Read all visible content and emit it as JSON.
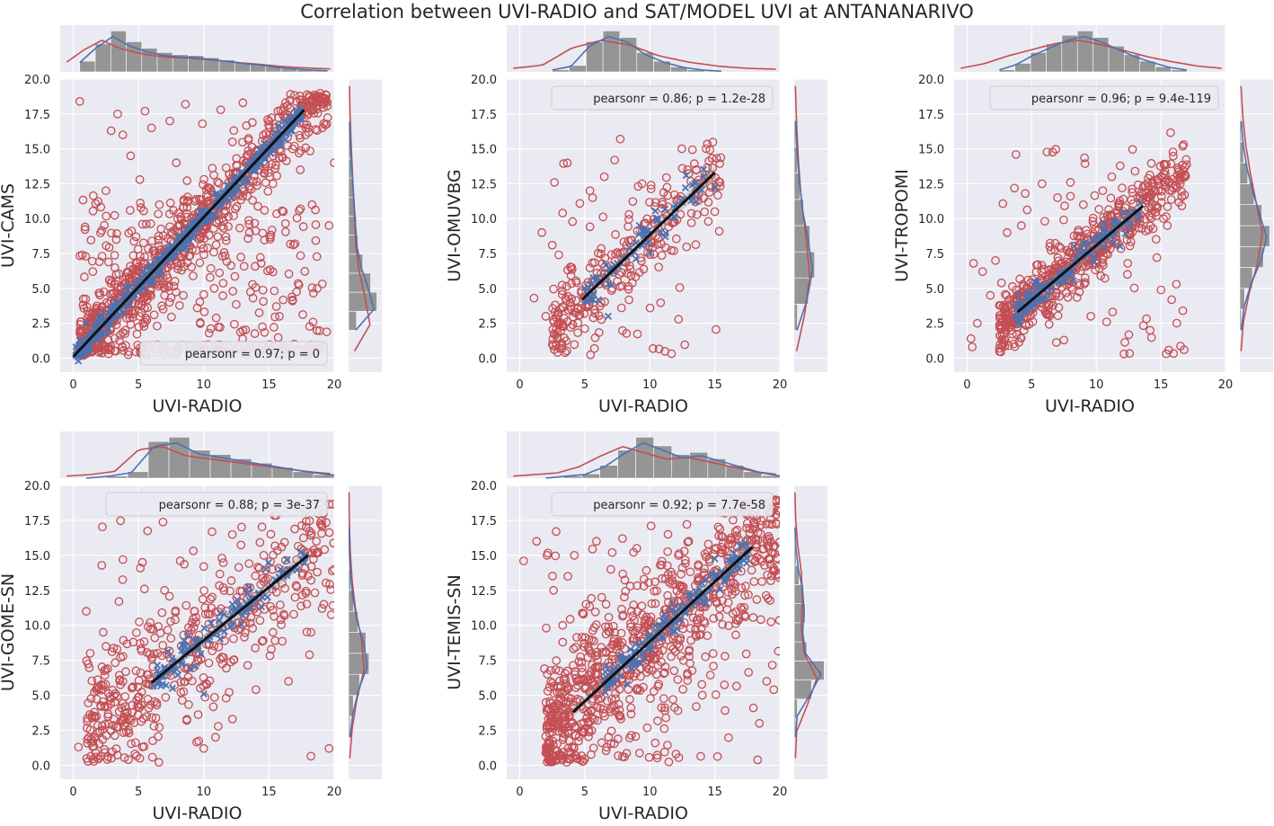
{
  "title": "Correlation between UVI-RADIO and SAT/MODEL UVI at ANTANANARIVO",
  "colors": {
    "background": "#eaeaf2",
    "grid": "#ffffff",
    "red": "#c44e52",
    "blue": "#4c72b0",
    "hist": "#8c8c8c",
    "fit": "#111111"
  },
  "chart_data": [
    {
      "type": "scatter",
      "xlabel": "UVI-RADIO",
      "ylabel": "UVI-CAMS",
      "xlim": [
        -1,
        20
      ],
      "ylim": [
        -1,
        20
      ],
      "xticks": [
        "0",
        "5",
        "10",
        "15",
        "20"
      ],
      "yticks": [
        "0.0",
        "2.5",
        "5.0",
        "7.5",
        "10.0",
        "12.5",
        "15.0",
        "17.5",
        "20.0"
      ],
      "stat": "pearsonr = 0.97; p = 0",
      "legend": "bottom-right",
      "fit": {
        "x": [
          0,
          17.7
        ],
        "y": [
          0.1,
          17.8
        ]
      },
      "red_points": [
        [
          0.3,
          0.3
        ],
        [
          0.5,
          18.4
        ],
        [
          1.2,
          2.5
        ],
        [
          1.5,
          6.2
        ],
        [
          2.1,
          3.4
        ],
        [
          2.5,
          12.0
        ],
        [
          2.9,
          16.3
        ],
        [
          3.0,
          4.6
        ],
        [
          3.3,
          8.5
        ],
        [
          3.4,
          17.5
        ],
        [
          3.8,
          16.0
        ],
        [
          4.0,
          2.0
        ],
        [
          4.4,
          14.5
        ],
        [
          4.9,
          6.8
        ],
        [
          5.1,
          12.8
        ],
        [
          5.3,
          9.6
        ],
        [
          5.5,
          17.7
        ],
        [
          6.0,
          16.5
        ],
        [
          6.2,
          3.1
        ],
        [
          6.6,
          11.0
        ],
        [
          7.0,
          4.5
        ],
        [
          7.4,
          17.0
        ],
        [
          7.9,
          14.0
        ],
        [
          8.3,
          6.3
        ],
        [
          8.6,
          18.2
        ],
        [
          9.1,
          10.0
        ],
        [
          9.5,
          3.6
        ],
        [
          9.9,
          16.8
        ],
        [
          10.4,
          12.2
        ],
        [
          10.8,
          5.0
        ],
        [
          11.3,
          17.8
        ],
        [
          11.7,
          8.7
        ],
        [
          12.2,
          15.5
        ],
        [
          12.6,
          11.8
        ],
        [
          13.0,
          18.3
        ],
        [
          13.5,
          9.0
        ],
        [
          14.0,
          14.8
        ],
        [
          14.4,
          6.8
        ],
        [
          14.9,
          17.1
        ],
        [
          15.3,
          12.5
        ],
        [
          15.8,
          3.0
        ],
        [
          16.1,
          10.5
        ],
        [
          16.6,
          17.9
        ],
        [
          17.0,
          8.2
        ],
        [
          17.4,
          13.5
        ],
        [
          17.8,
          16.0
        ],
        [
          18.3,
          11.0
        ],
        [
          18.7,
          5.0
        ],
        [
          19.1,
          16.5
        ],
        [
          19.6,
          9.5
        ],
        [
          20.0,
          14.0
        ]
      ],
      "blue_points": [
        [
          0.2,
          0.2
        ],
        [
          1.0,
          1.0
        ],
        [
          2.0,
          1.9
        ],
        [
          3.0,
          3.1
        ],
        [
          4.0,
          3.8
        ],
        [
          5.0,
          5.1
        ],
        [
          6.0,
          6.0
        ],
        [
          7.0,
          7.1
        ],
        [
          8.0,
          7.9
        ],
        [
          9.0,
          9.0
        ],
        [
          10.0,
          10.2
        ],
        [
          11.0,
          11.1
        ],
        [
          12.0,
          12.0
        ],
        [
          13.0,
          13.1
        ],
        [
          14.0,
          14.1
        ],
        [
          15.0,
          14.8
        ],
        [
          16.0,
          16.1
        ],
        [
          17.0,
          17.0
        ]
      ],
      "dense_red": {
        "n": 1100,
        "xmin": 0.5,
        "xmax": 19.5,
        "slope": 1.0,
        "spread": 1.3,
        "outliers": 0.28
      },
      "dense_blue": {
        "n": 450,
        "xmin": 0.2,
        "xmax": 17.5,
        "slope": 1.0,
        "spread": 0.35
      },
      "top_hist": [
        0.25,
        0.65,
        0.95,
        0.7,
        0.55,
        0.45,
        0.4,
        0.38,
        0.33,
        0.28,
        0.22,
        0.18,
        0.12,
        0.08,
        0.05,
        0.03
      ],
      "right_hist": [
        0.25,
        0.9,
        0.7,
        0.45,
        0.3,
        0.25,
        0.2,
        0.15,
        0.1,
        0.06,
        0.04
      ]
    },
    {
      "type": "scatter",
      "xlabel": "UVI-RADIO",
      "ylabel": "UVI-OMUVBG",
      "xlim": [
        -1,
        20
      ],
      "ylim": [
        -1,
        20
      ],
      "xticks": [
        "0",
        "5",
        "10",
        "15",
        "20"
      ],
      "yticks": [
        "0.0",
        "2.5",
        "5.0",
        "7.5",
        "10.0",
        "12.5",
        "15.0",
        "17.5",
        "20.0"
      ],
      "stat": "pearsonr = 0.86; p = 1.2e-28",
      "legend": "top-right",
      "fit": {
        "x": [
          4.8,
          15.0
        ],
        "y": [
          4.2,
          13.3
        ]
      },
      "red_points": [
        [
          1.1,
          4.3
        ],
        [
          1.7,
          9.0
        ],
        [
          2.0,
          3.0
        ],
        [
          2.5,
          8.1
        ],
        [
          3.0,
          7.4
        ],
        [
          3.3,
          10.4
        ],
        [
          4.0,
          6.5
        ],
        [
          5.4,
          12.0
        ],
        [
          5.6,
          11.5
        ],
        [
          6.5,
          13.0
        ],
        [
          7.3,
          14.2
        ],
        [
          8.4,
          10.3
        ],
        [
          9.4,
          12.5
        ],
        [
          10.1,
          12.4
        ],
        [
          11.0,
          10.0
        ],
        [
          12.5,
          13.6
        ],
        [
          13.5,
          11.2
        ],
        [
          14.5,
          9.8
        ],
        [
          15.0,
          10.5
        ],
        [
          15.4,
          12.6
        ]
      ],
      "blue_points": [
        [
          5.0,
          5.0
        ],
        [
          5.5,
          4.2
        ],
        [
          6.0,
          5.8
        ],
        [
          6.8,
          3.0
        ],
        [
          7.5,
          6.8
        ],
        [
          8.2,
          7.3
        ],
        [
          9.2,
          9.5
        ],
        [
          10.5,
          10.0
        ],
        [
          11.2,
          8.7
        ],
        [
          12.8,
          13.1
        ],
        [
          13.2,
          11.3
        ],
        [
          15.0,
          12.2
        ]
      ],
      "dense_red": {
        "n": 300,
        "xmin": 2.5,
        "xmax": 15.5,
        "slope": 0.9,
        "spread": 1.5,
        "outliers": 0.1
      },
      "dense_blue": {
        "n": 65,
        "xmin": 5.0,
        "xmax": 15.0,
        "slope": 0.9,
        "spread": 0.7
      },
      "top_hist": [
        0.05,
        0.15,
        0.7,
        0.95,
        0.8,
        0.45,
        0.25,
        0.12,
        0.05,
        0.02
      ],
      "right_hist": [
        0.1,
        0.45,
        0.65,
        0.5,
        0.3,
        0.18,
        0.1,
        0.05
      ]
    },
    {
      "type": "scatter",
      "xlabel": "UVI-RADIO",
      "ylabel": "UVI-TROPOMI",
      "xlim": [
        -1,
        20
      ],
      "ylim": [
        -1,
        20
      ],
      "xticks": [
        "0",
        "5",
        "10",
        "15",
        "20"
      ],
      "yticks": [
        "0.0",
        "2.5",
        "5.0",
        "7.5",
        "10.0",
        "12.5",
        "15.0",
        "17.5",
        "20.0"
      ],
      "stat": "pearsonr = 0.96; p = 9.4e-119",
      "legend": "top-right",
      "fit": {
        "x": [
          3.9,
          13.6
        ],
        "y": [
          3.3,
          10.9
        ]
      },
      "red_points": [
        [
          0.3,
          1.4
        ],
        [
          0.4,
          0.8
        ],
        [
          0.5,
          6.8
        ],
        [
          0.8,
          2.5
        ],
        [
          1.2,
          6.2
        ],
        [
          1.8,
          4.5
        ],
        [
          2.2,
          7.0
        ],
        [
          3.1,
          9.0
        ],
        [
          4.2,
          9.5
        ],
        [
          4.5,
          11.8
        ],
        [
          5.8,
          12.5
        ],
        [
          6.4,
          8.0
        ],
        [
          7.0,
          11.5
        ],
        [
          8.0,
          12.6
        ],
        [
          9.0,
          11.0
        ],
        [
          7.5,
          1.3
        ],
        [
          10.5,
          12.0
        ],
        [
          11.2,
          13.0
        ],
        [
          12.0,
          12.2
        ],
        [
          13.0,
          13.4
        ],
        [
          14.8,
          12.0
        ],
        [
          15.2,
          10.0
        ],
        [
          15.5,
          9.5
        ],
        [
          16.5,
          13.0
        ],
        [
          16.7,
          3.4
        ],
        [
          16.8,
          0.6
        ],
        [
          16.2,
          5.3
        ]
      ],
      "blue_points": [
        [
          3.8,
          3.0
        ],
        [
          4.5,
          3.4
        ],
        [
          5.0,
          4.0
        ],
        [
          5.5,
          4.6
        ],
        [
          6.3,
          5.1
        ],
        [
          7.0,
          5.6
        ],
        [
          7.7,
          6.1
        ],
        [
          8.5,
          7.0
        ],
        [
          9.3,
          7.5
        ],
        [
          10.2,
          8.3
        ],
        [
          11.0,
          9.0
        ],
        [
          12.0,
          9.7
        ],
        [
          13.0,
          10.4
        ]
      ],
      "dense_red": {
        "n": 650,
        "xmin": 2.5,
        "xmax": 17.0,
        "slope": 0.78,
        "spread": 1.1,
        "outliers": 0.07
      },
      "dense_blue": {
        "n": 130,
        "xmin": 3.8,
        "xmax": 13.5,
        "slope": 0.78,
        "spread": 0.5
      },
      "top_hist": [
        0.05,
        0.2,
        0.45,
        0.65,
        0.85,
        0.95,
        0.8,
        0.6,
        0.4,
        0.25,
        0.12,
        0.05
      ],
      "right_hist": [
        0.05,
        0.15,
        0.4,
        0.75,
        0.95,
        0.7,
        0.45,
        0.25,
        0.12,
        0.05
      ]
    },
    {
      "type": "scatter",
      "xlabel": "UVI-RADIO",
      "ylabel": "UVI-GOME-SN",
      "xlim": [
        -1,
        20
      ],
      "ylim": [
        -1,
        20
      ],
      "xticks": [
        "0",
        "5",
        "10",
        "15",
        "20"
      ],
      "yticks": [
        "0.0",
        "2.5",
        "5.0",
        "7.5",
        "10.0",
        "12.5",
        "15.0",
        "17.5",
        "20.0"
      ],
      "stat": "pearsonr = 0.88; p = 3e-37",
      "legend": "top-right",
      "fit": {
        "x": [
          6.0,
          18.0
        ],
        "y": [
          5.9,
          15.0
        ]
      },
      "red_points": [
        [
          0.4,
          1.3
        ],
        [
          1.0,
          11.0
        ],
        [
          1.3,
          8.0
        ],
        [
          1.8,
          5.5
        ],
        [
          2.3,
          9.5
        ],
        [
          2.8,
          4.9
        ],
        [
          3.1,
          3.3
        ],
        [
          3.5,
          11.7
        ],
        [
          4.0,
          4.2
        ],
        [
          4.6,
          8.8
        ],
        [
          5.1,
          0.5
        ],
        [
          5.3,
          14.5
        ],
        [
          5.9,
          10.2
        ],
        [
          6.4,
          4.3
        ],
        [
          7.0,
          12.5
        ],
        [
          7.6,
          7.0
        ],
        [
          8.2,
          14.6
        ],
        [
          8.7,
          3.2
        ],
        [
          9.3,
          11.0
        ],
        [
          10.0,
          14.2
        ],
        [
          10.0,
          1.2
        ],
        [
          10.9,
          2.0
        ],
        [
          11.4,
          14.8
        ],
        [
          12.2,
          3.3
        ],
        [
          12.7,
          10.2
        ],
        [
          13.4,
          12.5
        ],
        [
          14.0,
          5.4
        ],
        [
          14.6,
          15.0
        ],
        [
          15.3,
          9.5
        ],
        [
          16.0,
          13.0
        ],
        [
          16.5,
          6.0
        ],
        [
          17.0,
          12.0
        ],
        [
          18.0,
          15.2
        ],
        [
          18.7,
          13.8
        ],
        [
          19.2,
          11.5
        ],
        [
          19.6,
          1.2
        ],
        [
          20.0,
          14.0
        ]
      ],
      "blue_points": [
        [
          6.5,
          6.0
        ],
        [
          7.0,
          7.0
        ],
        [
          7.6,
          5.5
        ],
        [
          8.3,
          7.4
        ],
        [
          9.0,
          8.2
        ],
        [
          10.0,
          5.1
        ],
        [
          10.3,
          8.9
        ],
        [
          11.5,
          10.0
        ],
        [
          12.2,
          11.5
        ],
        [
          13.0,
          10.7
        ],
        [
          14.2,
          12.3
        ],
        [
          15.2,
          12.8
        ],
        [
          16.1,
          13.5
        ],
        [
          17.0,
          14.1
        ],
        [
          17.8,
          15.0
        ]
      ],
      "dense_red": {
        "n": 480,
        "xmin": 1.0,
        "xmax": 20.0,
        "slope": 0.76,
        "spread": 2.3,
        "outliers": 0.12
      },
      "dense_blue": {
        "n": 110,
        "xmin": 6.0,
        "xmax": 18.0,
        "slope": 0.76,
        "spread": 0.6
      },
      "top_hist": [
        0.0,
        0.05,
        0.15,
        0.85,
        0.95,
        0.65,
        0.55,
        0.45,
        0.35,
        0.25,
        0.15,
        0.08
      ],
      "right_hist": [
        0.05,
        0.15,
        0.35,
        0.65,
        0.55,
        0.3,
        0.15,
        0.07,
        0.03,
        0.02
      ]
    },
    {
      "type": "scatter",
      "xlabel": "UVI-RADIO",
      "ylabel": "UVI-TEMIS-SN",
      "xlim": [
        -1,
        20
      ],
      "ylim": [
        -1,
        20
      ],
      "xticks": [
        "0",
        "5",
        "10",
        "15",
        "20"
      ],
      "yticks": [
        "0.0",
        "2.5",
        "5.0",
        "7.5",
        "10.0",
        "12.5",
        "15.0",
        "17.5",
        "20.0"
      ],
      "stat": "pearsonr = 0.92; p = 7.7e-58",
      "legend": "top-right",
      "fit": {
        "x": [
          4.1,
          17.9
        ],
        "y": [
          3.8,
          15.6
        ]
      },
      "red_points": [
        [
          0.3,
          14.6
        ],
        [
          1.3,
          16.0
        ],
        [
          1.9,
          6.9
        ],
        [
          2.1,
          15.0
        ],
        [
          2.6,
          12.5
        ],
        [
          2.8,
          16.7
        ],
        [
          3.3,
          10.0
        ],
        [
          3.7,
          13.5
        ],
        [
          4.2,
          15.0
        ],
        [
          4.6,
          6.1
        ],
        [
          5.1,
          11.5
        ],
        [
          5.5,
          8.0
        ],
        [
          5.9,
          16.0
        ],
        [
          6.3,
          12.0
        ],
        [
          7.0,
          14.0
        ],
        [
          7.3,
          9.5
        ],
        [
          7.9,
          16.2
        ],
        [
          8.5,
          12.8
        ],
        [
          9.0,
          15.5
        ],
        [
          9.7,
          7.3
        ],
        [
          10.1,
          17.1
        ],
        [
          10.8,
          14.3
        ],
        [
          11.4,
          16.5
        ],
        [
          12.2,
          15.0
        ],
        [
          13.0,
          16.0
        ],
        [
          13.8,
          13.3
        ],
        [
          14.5,
          15.8
        ],
        [
          15.3,
          16.4
        ],
        [
          16.0,
          14.8
        ],
        [
          16.7,
          15.2
        ],
        [
          17.5,
          16.0
        ],
        [
          18.2,
          15.8
        ],
        [
          19.0,
          16.0
        ],
        [
          19.5,
          15.6
        ],
        [
          19.8,
          14.8
        ]
      ],
      "blue_points": [
        [
          7.0,
          6.2
        ],
        [
          7.8,
          7.0
        ],
        [
          8.5,
          7.6
        ],
        [
          9.2,
          8.5
        ],
        [
          10.0,
          9.2
        ],
        [
          11.0,
          10.3
        ],
        [
          12.0,
          11.0
        ],
        [
          13.0,
          12.1
        ],
        [
          14.0,
          13.0
        ],
        [
          15.0,
          13.4
        ],
        [
          16.0,
          14.0
        ],
        [
          17.0,
          14.8
        ]
      ],
      "dense_red": {
        "n": 900,
        "xmin": 2.0,
        "xmax": 20.0,
        "slope": 0.86,
        "spread": 2.6,
        "outliers": 0.1
      },
      "dense_blue": {
        "n": 140,
        "xmin": 6.5,
        "xmax": 17.5,
        "slope": 0.86,
        "spread": 0.5
      },
      "top_hist": [
        0.0,
        0.05,
        0.1,
        0.3,
        0.65,
        0.95,
        0.75,
        0.55,
        0.6,
        0.45,
        0.3,
        0.15,
        0.06
      ],
      "right_hist": [
        0.05,
        0.1,
        0.55,
        0.95,
        0.4,
        0.3,
        0.35,
        0.3,
        0.15,
        0.06,
        0.03
      ]
    }
  ]
}
